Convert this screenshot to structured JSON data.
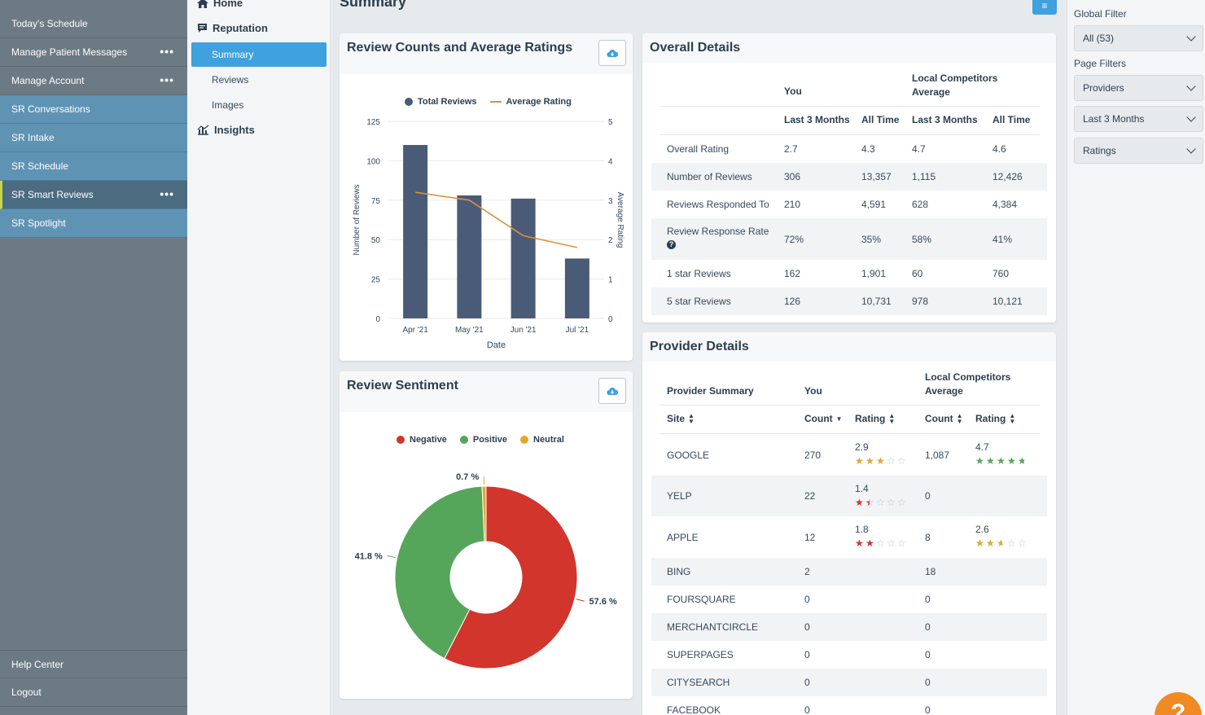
{
  "left_nav": {
    "items": [
      {
        "label": "Today's Schedule",
        "dots": false,
        "sr": false
      },
      {
        "label": "Manage Patient Messages",
        "dots": true,
        "sr": false
      },
      {
        "label": "Manage Account",
        "dots": true,
        "sr": false
      },
      {
        "label": "SR Conversations",
        "dots": false,
        "sr": true
      },
      {
        "label": "SR Intake",
        "dots": false,
        "sr": true
      },
      {
        "label": "SR Schedule",
        "dots": false,
        "sr": true
      },
      {
        "label": "SR Smart Reviews",
        "dots": true,
        "sr": true,
        "active": true
      },
      {
        "label": "SR Spotlight",
        "dots": false,
        "sr": true
      }
    ],
    "bottom": [
      "Help Center",
      "Logout"
    ],
    "dots_glyph": "•••"
  },
  "sub_nav": {
    "home": "Home",
    "reputation": "Reputation",
    "items": [
      "Summary",
      "Reviews",
      "Images"
    ],
    "insights": "Insights"
  },
  "main": {
    "title": "Summary",
    "menu_glyph": "≡"
  },
  "review_counts": {
    "title": "Review Counts and Average Ratings",
    "legend": [
      "Total Reviews",
      "Average Rating"
    ]
  },
  "sentiment": {
    "title": "Review Sentiment",
    "legend": [
      "Negative",
      "Positive",
      "Neutral"
    ]
  },
  "chart_data": [
    {
      "type": "bar",
      "title": "Review Counts and Average Ratings",
      "categories": [
        "Apr '21",
        "May '21",
        "Jun '21",
        "Jul '21"
      ],
      "series": [
        {
          "name": "Total Reviews",
          "type": "bar",
          "axis": "left",
          "values": [
            110,
            78,
            76,
            38
          ]
        },
        {
          "name": "Average Rating",
          "type": "line",
          "axis": "right",
          "values": [
            3.2,
            3.0,
            2.1,
            1.8
          ]
        }
      ],
      "xlabel": "Date",
      "ylabel": "Number of Reviews",
      "y2label": "Average Rating",
      "ylim": [
        0,
        125
      ],
      "y2lim": [
        0,
        5
      ],
      "yticks": [
        0,
        25,
        50,
        75,
        100,
        125
      ],
      "y2ticks": [
        0,
        1,
        2,
        3,
        4,
        5
      ],
      "colors": {
        "bar": "#4a5b78",
        "line": "#e0913a"
      }
    },
    {
      "type": "pie",
      "title": "Review Sentiment",
      "donut": true,
      "slices": [
        {
          "name": "Negative",
          "value": 57.6,
          "label": "57.6 %",
          "color": "#d1352b"
        },
        {
          "name": "Positive",
          "value": 41.8,
          "label": "41.8 %",
          "color": "#55a65a"
        },
        {
          "name": "Neutral",
          "value": 0.7,
          "label": "0.7 %",
          "color": "#e2a932"
        }
      ]
    }
  ],
  "overall": {
    "title": "Overall Details",
    "you": "You",
    "competitors": "Local Competitors Average",
    "columns": [
      "Last 3 Months",
      "All Time",
      "Last 3 Months",
      "All Time"
    ],
    "rows": [
      {
        "label": "Overall Rating",
        "v": [
          "2.7",
          "4.3",
          "4.7",
          "4.6"
        ]
      },
      {
        "label": "Number of Reviews",
        "v": [
          "306",
          "13,357",
          "1,115",
          "12,426"
        ]
      },
      {
        "label": "Reviews Responded To",
        "v": [
          "210",
          "4,591",
          "628",
          "4,384"
        ]
      },
      {
        "label": "Review Response Rate",
        "v": [
          "72%",
          "35%",
          "58%",
          "41%"
        ],
        "help": true
      },
      {
        "label": "1 star Reviews",
        "v": [
          "162",
          "1,901",
          "60",
          "760"
        ]
      },
      {
        "label": "5 star Reviews",
        "v": [
          "126",
          "10,731",
          "978",
          "10,121"
        ]
      }
    ]
  },
  "provider": {
    "title": "Provider Details",
    "summary": "Provider Summary",
    "you": "You",
    "competitors": "Local Competitors Average",
    "columns": [
      "Site",
      "Count",
      "Rating",
      "Count",
      "Rating"
    ],
    "rows": [
      {
        "site": "GOOGLE",
        "count": "270",
        "rating": "2.9",
        "stars": 2.9,
        "comp_count": "1,087",
        "comp_rating": "4.7",
        "comp_stars": 4.7
      },
      {
        "site": "YELP",
        "count": "22",
        "rating": "1.4",
        "stars": 1.4,
        "comp_count": "0",
        "comp_rating": "",
        "comp_stars": null
      },
      {
        "site": "APPLE",
        "count": "12",
        "rating": "1.8",
        "stars": 1.8,
        "comp_count": "8",
        "comp_rating": "2.6",
        "comp_stars": 2.6
      },
      {
        "site": "BING",
        "count": "2",
        "rating": "",
        "stars": null,
        "comp_count": "18",
        "comp_rating": "",
        "comp_stars": null
      },
      {
        "site": "FOURSQUARE",
        "count": "0",
        "rating": "",
        "stars": null,
        "comp_count": "0",
        "comp_rating": "",
        "comp_stars": null
      },
      {
        "site": "MERCHANTCIRCLE",
        "count": "0",
        "rating": "",
        "stars": null,
        "comp_count": "0",
        "comp_rating": "",
        "comp_stars": null
      },
      {
        "site": "SUPERPAGES",
        "count": "0",
        "rating": "",
        "stars": null,
        "comp_count": "0",
        "comp_rating": "",
        "comp_stars": null
      },
      {
        "site": "CITYSEARCH",
        "count": "0",
        "rating": "",
        "stars": null,
        "comp_count": "0",
        "comp_rating": "",
        "comp_stars": null
      },
      {
        "site": "FACEBOOK",
        "count": "0",
        "rating": "",
        "stars": null,
        "comp_count": "0",
        "comp_rating": "",
        "comp_stars": null
      }
    ]
  },
  "filters": {
    "global_label": "Global Filter",
    "global_value": "All (53)",
    "page_label": "Page Filters",
    "selects": [
      "Providers",
      "Last 3 Months",
      "Ratings"
    ]
  },
  "help_glyph": "?",
  "star_colors": {
    "high": "#55a65a",
    "mid": "#e2a932",
    "low": "#d1352b",
    "empty": "#bfc5ca"
  }
}
